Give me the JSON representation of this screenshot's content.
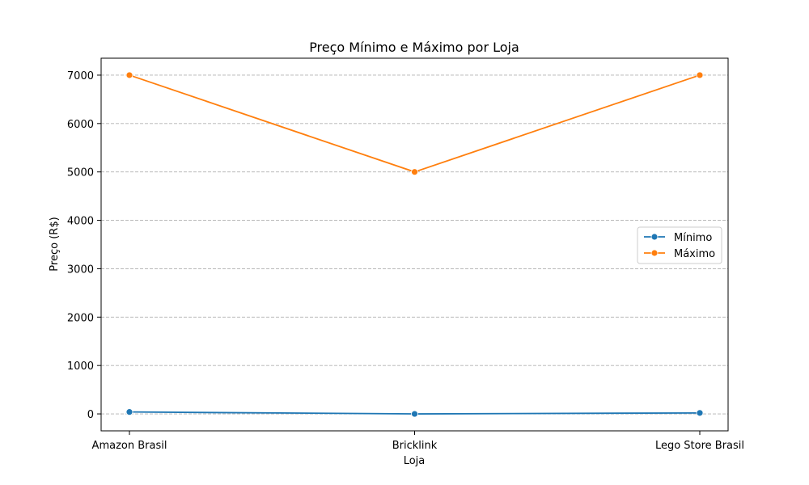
{
  "chart_data": {
    "type": "line",
    "title": "Preço Mínimo e Máximo por Loja",
    "xlabel": "Loja",
    "ylabel": "Preço (R$)",
    "categories": [
      "Amazon Brasil",
      "Bricklink",
      "Lego Store Brasil"
    ],
    "ylim": [
      -350,
      7350
    ],
    "yticks": [
      0,
      1000,
      2000,
      3000,
      4000,
      5000,
      6000,
      7000
    ],
    "grid": "y",
    "legend_position": "center-right",
    "series": [
      {
        "name": "Mínimo",
        "color": "#1f77b4",
        "values": [
          40,
          0,
          20
        ]
      },
      {
        "name": "Máximo",
        "color": "#ff7f0e",
        "values": [
          7000,
          5000,
          7000
        ]
      }
    ]
  }
}
